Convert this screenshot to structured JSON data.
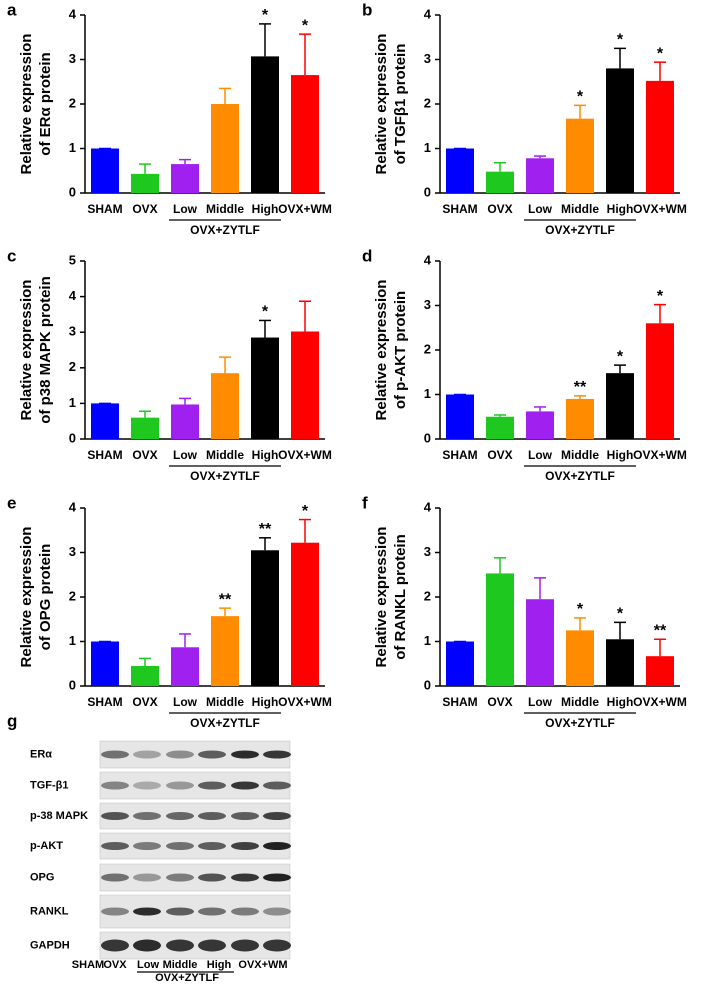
{
  "chart_data": [
    {
      "type": "bar",
      "panel_label": "a",
      "ylabel": [
        "Relative expression",
        "of ERα protein"
      ],
      "categories": [
        "SHAM",
        "OVX",
        "Low",
        "Middle",
        "High",
        "OVX+WM"
      ],
      "group_label": "OVX+ZYTLF",
      "colors": [
        "#0000ff",
        "#1ec81e",
        "#a020f0",
        "#ff8c00",
        "#000000",
        "#ff0000"
      ],
      "values": [
        1,
        0.43,
        0.65,
        2.0,
        3.07,
        2.65
      ],
      "errors": [
        0,
        0.22,
        0.1,
        0.35,
        0.73,
        0.92
      ],
      "annotations": [
        null,
        null,
        null,
        null,
        "*",
        "*"
      ],
      "ylim": [
        0,
        4
      ],
      "yticks": [
        0,
        1,
        2,
        3,
        4
      ]
    },
    {
      "type": "bar",
      "panel_label": "b",
      "ylabel": [
        "Relative expression",
        "of TGFβ1 protein"
      ],
      "categories": [
        "SHAM",
        "OVX",
        "Low",
        "Middle",
        "High",
        "OVX+WM"
      ],
      "group_label": "OVX+ZYTLF",
      "colors": [
        "#0000ff",
        "#1ec81e",
        "#a020f0",
        "#ff8c00",
        "#000000",
        "#ff0000"
      ],
      "values": [
        1,
        0.48,
        0.78,
        1.67,
        2.8,
        2.52
      ],
      "errors": [
        0,
        0.2,
        0.05,
        0.3,
        0.45,
        0.42
      ],
      "annotations": [
        null,
        null,
        null,
        "*",
        "*",
        "*"
      ],
      "ylim": [
        0,
        4
      ],
      "yticks": [
        0,
        1,
        2,
        3,
        4
      ]
    },
    {
      "type": "bar",
      "panel_label": "c",
      "ylabel": [
        "Relative expression",
        "of p38 MAPK protein"
      ],
      "categories": [
        "SHAM",
        "OVX",
        "Low",
        "Middle",
        "High",
        "OVX+WM"
      ],
      "group_label": "OVX+ZYTLF",
      "colors": [
        "#0000ff",
        "#1ec81e",
        "#a020f0",
        "#ff8c00",
        "#000000",
        "#ff0000"
      ],
      "values": [
        1,
        0.6,
        0.97,
        1.85,
        2.85,
        3.02
      ],
      "errors": [
        0,
        0.18,
        0.17,
        0.45,
        0.48,
        0.85
      ],
      "annotations": [
        null,
        null,
        null,
        null,
        "*",
        null
      ],
      "ylim": [
        0,
        5
      ],
      "yticks": [
        0,
        1,
        2,
        3,
        4,
        5
      ]
    },
    {
      "type": "bar",
      "panel_label": "d",
      "ylabel": [
        "Relative expression",
        "of p-AKT protein"
      ],
      "categories": [
        "SHAM",
        "OVX",
        "Low",
        "Middle",
        "High",
        "OVX+WM"
      ],
      "group_label": "OVX+ZYTLF",
      "colors": [
        "#0000ff",
        "#1ec81e",
        "#a020f0",
        "#ff8c00",
        "#000000",
        "#ff0000"
      ],
      "values": [
        1,
        0.5,
        0.62,
        0.9,
        1.48,
        2.6
      ],
      "errors": [
        0,
        0.04,
        0.1,
        0.07,
        0.18,
        0.42
      ],
      "annotations": [
        null,
        null,
        null,
        "**",
        "*",
        "*"
      ],
      "ylim": [
        0,
        4
      ],
      "yticks": [
        0,
        1,
        2,
        3,
        4
      ]
    },
    {
      "type": "bar",
      "panel_label": "e",
      "ylabel": [
        "Relative expression",
        "of OPG protein"
      ],
      "categories": [
        "SHAM",
        "OVX",
        "Low",
        "Middle",
        "High",
        "OVX+WM"
      ],
      "group_label": "OVX+ZYTLF",
      "colors": [
        "#0000ff",
        "#1ec81e",
        "#a020f0",
        "#ff8c00",
        "#000000",
        "#ff0000"
      ],
      "values": [
        1,
        0.45,
        0.87,
        1.57,
        3.05,
        3.22
      ],
      "errors": [
        0,
        0.17,
        0.3,
        0.18,
        0.28,
        0.52
      ],
      "annotations": [
        null,
        null,
        null,
        "**",
        "**",
        "*"
      ],
      "ylim": [
        0,
        4
      ],
      "yticks": [
        0,
        1,
        2,
        3,
        4
      ]
    },
    {
      "type": "bar",
      "panel_label": "f",
      "ylabel": [
        "Relative expression",
        "of RANKL protein"
      ],
      "categories": [
        "SHAM",
        "OVX",
        "Low",
        "Middle",
        "High",
        "OVX+WM"
      ],
      "group_label": "OVX+ZYTLF",
      "colors": [
        "#0000ff",
        "#1ec81e",
        "#a020f0",
        "#ff8c00",
        "#000000",
        "#ff0000"
      ],
      "values": [
        1,
        2.53,
        1.95,
        1.25,
        1.05,
        0.67
      ],
      "errors": [
        0,
        0.35,
        0.48,
        0.28,
        0.38,
        0.38
      ],
      "annotations": [
        null,
        null,
        null,
        "*",
        "*",
        "**"
      ],
      "ylim": [
        0,
        4
      ],
      "yticks": [
        0,
        1,
        2,
        3,
        4
      ]
    }
  ],
  "blot": {
    "panel_label": "g",
    "rows": [
      "ERα",
      "TGF-β1",
      "p-38 MAPK",
      "p-AKT",
      "OPG",
      "RANKL",
      "GAPDH"
    ],
    "lanes": [
      "SHAM",
      "OVX",
      "Low",
      "Middle",
      "High",
      "OVX+WM"
    ],
    "group_label": "OVX+ZYTLF"
  }
}
